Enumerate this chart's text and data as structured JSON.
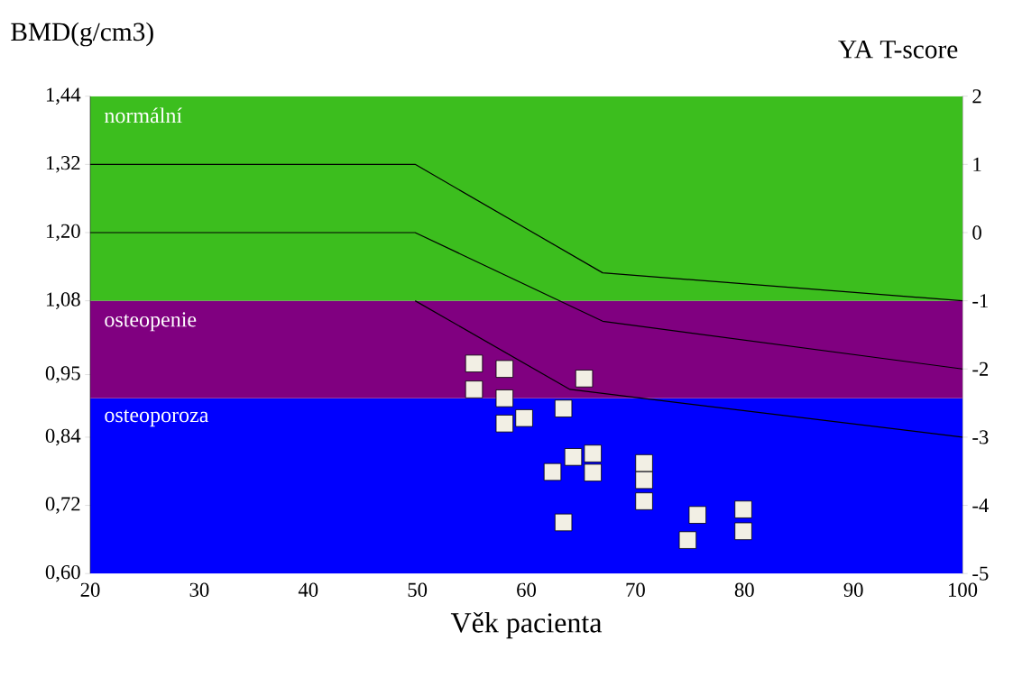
{
  "chart_data": {
    "type": "scatter",
    "xlabel": "Věk pacienta",
    "ylabel": "BMD(g/cm3)",
    "y2label": "YA T-score",
    "xlim": [
      20,
      100
    ],
    "xticks": [
      20,
      30,
      40,
      50,
      60,
      70,
      80,
      90,
      100
    ],
    "ylim": [
      0.6,
      1.44
    ],
    "yticks": [
      {
        "value": 0.6,
        "label": "0,60"
      },
      {
        "value": 0.72,
        "label": "0,72"
      },
      {
        "value": 0.84,
        "label": "0,84"
      },
      {
        "value": 0.95,
        "label": "0,95"
      },
      {
        "value": 1.08,
        "label": "1,08"
      },
      {
        "value": 1.2,
        "label": "1,20"
      },
      {
        "value": 1.32,
        "label": "1,32"
      },
      {
        "value": 1.44,
        "label": "1,44"
      }
    ],
    "y2lim": [
      -5,
      2
    ],
    "y2ticks": [
      -5,
      -4,
      -3,
      -2,
      -1,
      0,
      1,
      2
    ],
    "bands": [
      {
        "axis": "y2",
        "from": -1,
        "to": 2,
        "label": "normální",
        "color": "#3cbe1e"
      },
      {
        "axis": "y2",
        "from": -2.43,
        "to": -1,
        "label": "osteopenie",
        "color": "#800080"
      },
      {
        "axis": "y2",
        "from": -5,
        "to": -2.43,
        "label": "osteoporoza",
        "color": "#0000ff"
      }
    ],
    "series": [
      {
        "type": "line",
        "axis": "y2",
        "color": "#000000",
        "x": [
          20,
          49.8,
          67,
          100
        ],
        "values": [
          1,
          1,
          -0.59,
          -1
        ]
      },
      {
        "type": "line",
        "axis": "y2",
        "color": "#000000",
        "x": [
          20,
          49.8,
          67,
          100
        ],
        "values": [
          0,
          0,
          -1.3,
          -2
        ]
      },
      {
        "type": "line",
        "axis": "y2",
        "color": "#000000",
        "x": [
          49.8,
          64,
          100
        ],
        "values": [
          -1,
          -2.3,
          -3
        ]
      },
      {
        "axis": "y2",
        "color": "#f2efe4",
        "marker": "square",
        "x": [
          55.2,
          55.2,
          58.0,
          58.0,
          58.0,
          59.8,
          63.4,
          65.3,
          62.4,
          64.3,
          66.1,
          66.1,
          70.8,
          70.8,
          70.8,
          63.4,
          75.7,
          74.8,
          79.9,
          79.9
        ],
        "values": [
          -1.92,
          -2.3,
          -2.0,
          -2.43,
          -2.8,
          -2.72,
          -2.58,
          -2.14,
          -3.51,
          -3.29,
          -3.24,
          -3.52,
          -3.38,
          -3.63,
          -3.94,
          -4.25,
          -4.14,
          -4.51,
          -4.06,
          -4.38
        ]
      }
    ]
  }
}
